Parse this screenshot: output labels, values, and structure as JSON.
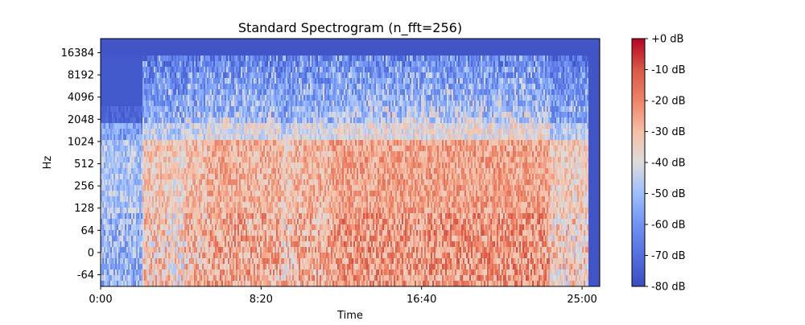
{
  "chart_data": {
    "type": "heatmap",
    "title": "Standard Spectrogram (n_fft=256)",
    "xlabel": "Time",
    "ylabel": "Hz",
    "x_ticks": [
      "0:00",
      "8:20",
      "16:40",
      "25:00"
    ],
    "x_tick_values_seconds": [
      0,
      500,
      1000,
      1500
    ],
    "xlim_seconds": [
      0,
      1555
    ],
    "y_ticks": [
      "-64",
      "0",
      "64",
      "128",
      "256",
      "512",
      "1024",
      "2048",
      "4096",
      "8192",
      "16384"
    ],
    "y_scale": "symlog",
    "colorbar": {
      "ticks": [
        "+0 dB",
        "-10 dB",
        "-20 dB",
        "-30 dB",
        "-40 dB",
        "-50 dB",
        "-60 dB",
        "-70 dB",
        "-80 dB"
      ],
      "range_db": [
        -80,
        0
      ],
      "colormap": "coolwarm"
    },
    "activity_segments_seconds": [
      {
        "start": 130,
        "end": 220,
        "level": 0.55
      },
      {
        "start": 220,
        "end": 260,
        "level": 0.45
      },
      {
        "start": 260,
        "end": 330,
        "level": 0.6
      },
      {
        "start": 330,
        "end": 480,
        "level": 0.72
      },
      {
        "start": 480,
        "end": 560,
        "level": 0.7
      },
      {
        "start": 560,
        "end": 600,
        "level": 0.55
      },
      {
        "start": 600,
        "end": 720,
        "level": 0.68
      },
      {
        "start": 720,
        "end": 1020,
        "level": 0.8
      },
      {
        "start": 1020,
        "end": 1400,
        "level": 0.82
      },
      {
        "start": 1400,
        "end": 1520,
        "level": 0.5
      }
    ]
  }
}
